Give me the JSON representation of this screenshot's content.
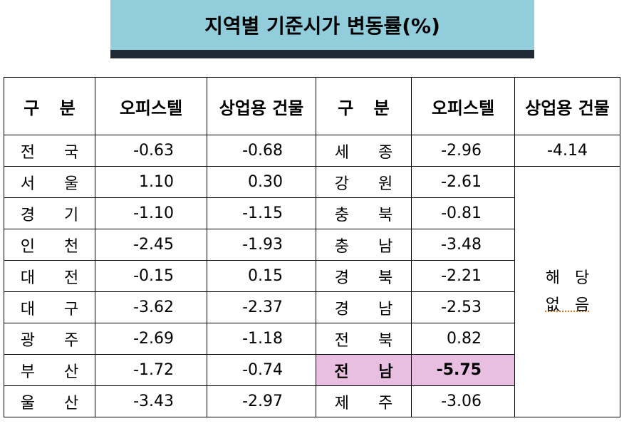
{
  "header": {
    "title": "지역별 기준시가 변동률(%)"
  },
  "table": {
    "columns": [
      "구 분",
      "오피스텔",
      "상업용 건물",
      "구 분",
      "오피스텔",
      "상업용 건물"
    ],
    "rows": [
      [
        "전 국",
        "-0.63",
        "-0.68",
        "세 종",
        "-2.96",
        "-4.14"
      ],
      [
        "서 울",
        "1.10",
        "0.30",
        "강 원",
        "-2.61"
      ],
      [
        "경 기",
        "-1.10",
        "-1.15",
        "충 북",
        "-0.81"
      ],
      [
        "인 천",
        "-2.45",
        "-1.93",
        "충 남",
        "-3.48"
      ],
      [
        "대 전",
        "-0.15",
        "0.15",
        "경 북",
        "-2.21"
      ],
      [
        "대 구",
        "-3.62",
        "-2.37",
        "경 남",
        "-2.53"
      ],
      [
        "광 주",
        "-2.69",
        "-1.18",
        "전 북",
        "0.82"
      ],
      [
        "부 산",
        "-1.72",
        "-0.74",
        "전 남",
        "-5.75"
      ],
      [
        "울 산",
        "-3.43",
        "-2.97",
        "제 주",
        "-3.06"
      ]
    ],
    "merged_note": [
      "해 당",
      "없 음"
    ]
  }
}
